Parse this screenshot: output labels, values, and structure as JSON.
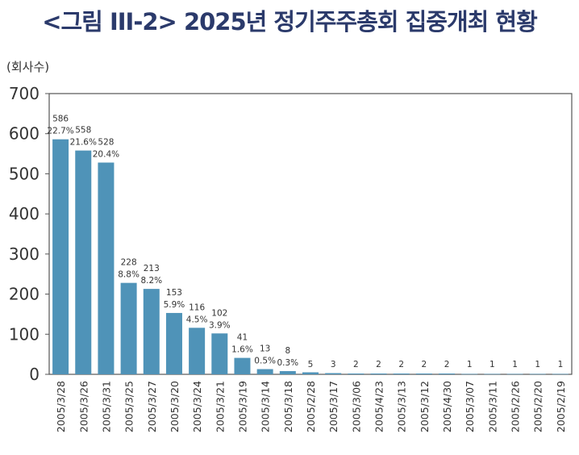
{
  "title": "<그림 III-2> 2025년 정기주주총회 집중개최 현황",
  "unit_label": "(회사수)",
  "chart_data": {
    "type": "bar",
    "title": "<그림 III-2> 2025년 정기주주총회 집중개최 현황",
    "ylabel": "(회사수)",
    "xlabel": "",
    "ylim": [
      0,
      700
    ],
    "yticks": [
      "0",
      "100",
      "200",
      "300",
      "400",
      "500",
      "600",
      "700"
    ],
    "grid": false,
    "categories": [
      "2005/3/28",
      "2005/3/26",
      "2005/3/31",
      "2005/3/25",
      "2005/3/27",
      "2005/3/20",
      "2005/3/24",
      "2005/3/21",
      "2005/3/19",
      "2005/3/14",
      "2005/3/18",
      "2005/2/28",
      "2005/3/17",
      "2005/3/06",
      "2005/4/23",
      "2005/3/13",
      "2005/3/12",
      "2005/4/30",
      "2005/3/07",
      "2005/3/11",
      "2005/2/26",
      "2005/2/20",
      "2005/2/19"
    ],
    "values": [
      586,
      558,
      528,
      228,
      213,
      153,
      116,
      102,
      41,
      13,
      8,
      5,
      3,
      2,
      2,
      2,
      2,
      2,
      1,
      1,
      1,
      1,
      1
    ],
    "percent_labels": [
      "22.7%",
      "21.6%",
      "20.4%",
      "8.8%",
      "8.2%",
      "5.9%",
      "4.5%",
      "3.9%",
      "1.6%",
      "0.5%",
      "0.3%",
      "",
      "",
      "",
      "",
      "",
      "",
      "",
      "",
      "",
      "",
      "",
      ""
    ],
    "bar_color": "#4f93b8",
    "axis_color": "#555555",
    "label_color": "#333333"
  }
}
